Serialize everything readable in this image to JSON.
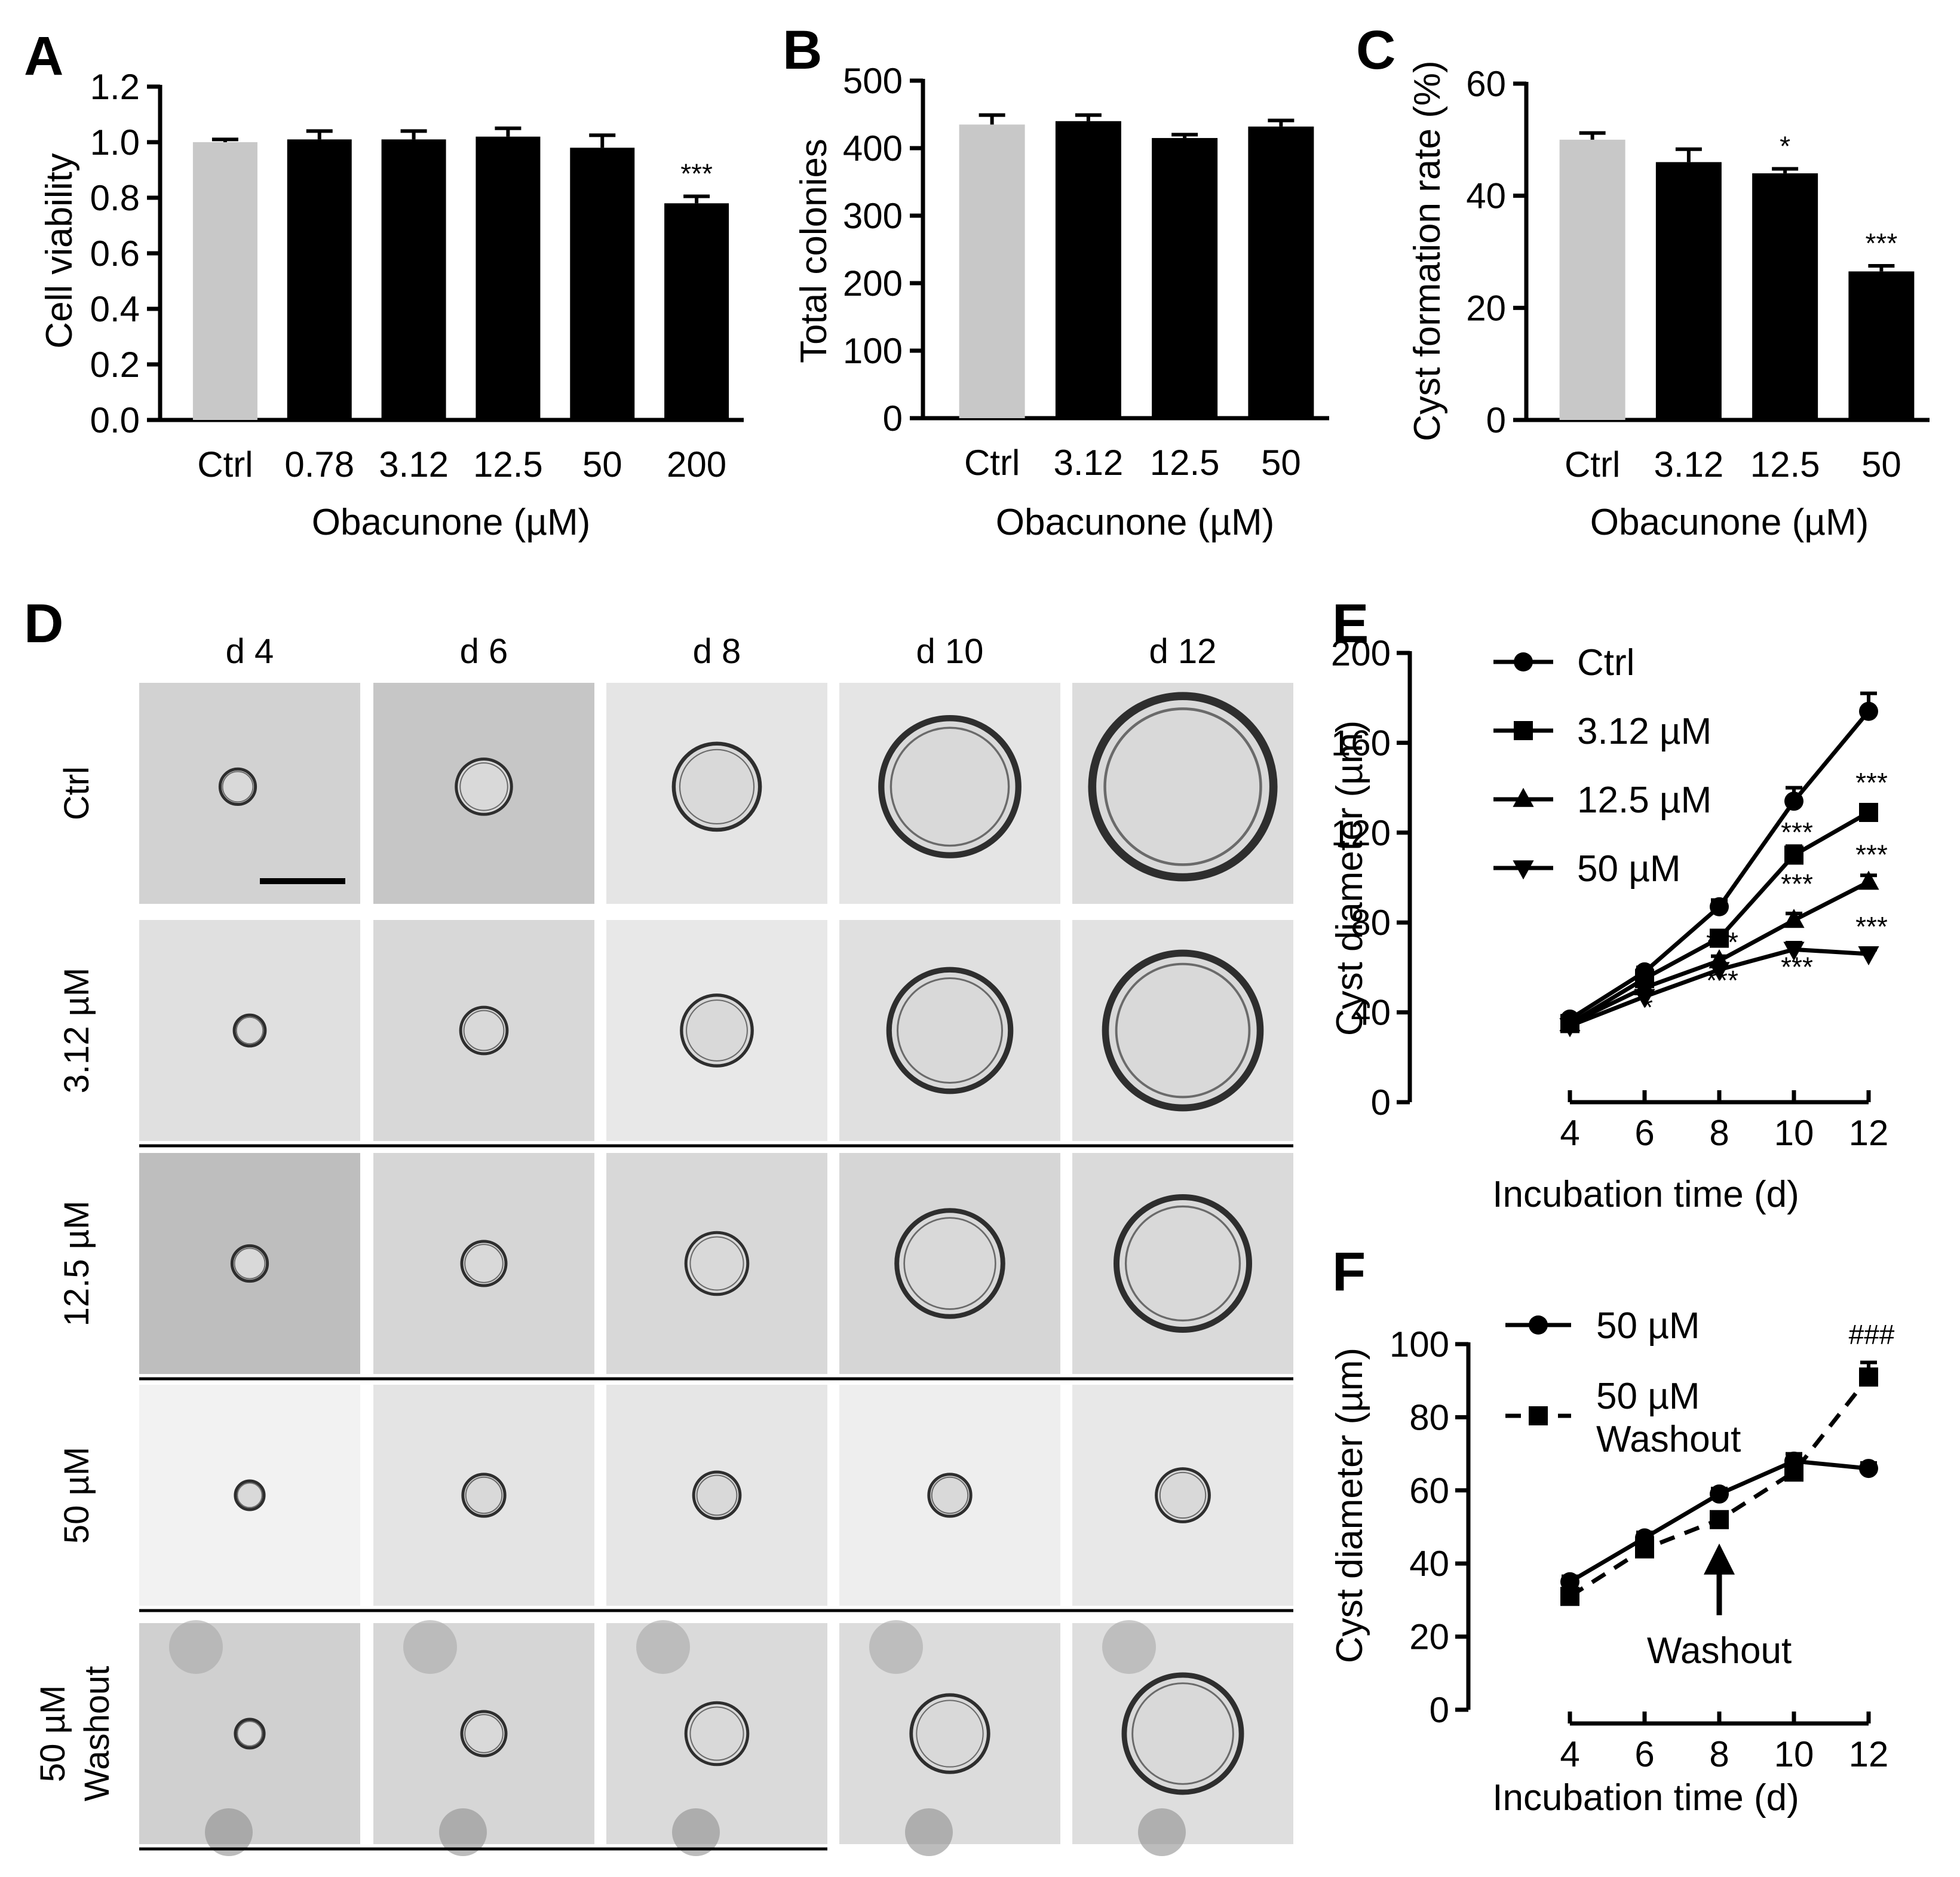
{
  "panels": {
    "A": {
      "letter": "A"
    },
    "B": {
      "letter": "B"
    },
    "C": {
      "letter": "C"
    },
    "D": {
      "letter": "D"
    },
    "E": {
      "letter": "E"
    },
    "F": {
      "letter": "F"
    }
  },
  "microscopy": {
    "days": [
      "d 4",
      "d 6",
      "d 8",
      "d  10",
      "d 12"
    ],
    "rows": [
      "Ctrl",
      "3.12 µM",
      "12.5 µM",
      "50 µM",
      "50 µM Washout"
    ],
    "row_label_lines": [
      [
        "Ctrl"
      ],
      [
        "3.12 µM"
      ],
      [
        "12.5 µM"
      ],
      [
        "50 µM"
      ],
      [
        "50 µM",
        "Washout"
      ]
    ],
    "cyst_relative_size": [
      [
        0.16,
        0.25,
        0.39,
        0.62,
        0.82
      ],
      [
        0.14,
        0.21,
        0.32,
        0.55,
        0.7
      ],
      [
        0.16,
        0.2,
        0.28,
        0.48,
        0.6
      ],
      [
        0.13,
        0.19,
        0.21,
        0.19,
        0.24
      ],
      [
        0.13,
        0.2,
        0.28,
        0.35,
        0.53
      ]
    ],
    "background_shades": [
      [
        "#d2d2d2",
        "#c6c6c6",
        "#e5e5e5",
        "#e5e5e5",
        "#dcdcdc"
      ],
      [
        "#e0e0e0",
        "#d8d8d8",
        "#e8e8e8",
        "#e0e0e0",
        "#e2e2e2"
      ],
      [
        "#bebebe",
        "#d6d6d6",
        "#d8d8d8",
        "#d6d6d6",
        "#dadada"
      ],
      [
        "#f2f2f2",
        "#e4e4e4",
        "#e6e6e6",
        "#eeeeee",
        "#e8e8e8"
      ],
      [
        "#d0d0d0",
        "#d6d6d6",
        "#dadada",
        "#dcdcdc",
        "#dedede"
      ]
    ]
  },
  "chart_data": [
    {
      "panel": "A",
      "type": "bar",
      "categories": [
        "Ctrl",
        "0.78",
        "3.12",
        "12.5",
        "50",
        "200"
      ],
      "values": [
        1.0,
        1.01,
        1.01,
        1.02,
        0.98,
        0.78
      ],
      "errors": [
        0.01,
        0.03,
        0.03,
        0.03,
        0.045,
        0.025
      ],
      "colors": [
        "#c8c8c8",
        "#000000",
        "#000000",
        "#000000",
        "#000000",
        "#000000"
      ],
      "significance": [
        "",
        "",
        "",
        "",
        "",
        "***"
      ],
      "xlabel": "Obacunone (µM)",
      "ylabel": "Cell viability",
      "ylim": [
        0,
        1.2
      ],
      "yticks": [
        0.0,
        0.2,
        0.4,
        0.6,
        0.8,
        1.0,
        1.2
      ],
      "ytick_labels": [
        "0.0",
        "0.2",
        "0.4",
        "0.6",
        "0.8",
        "1.0",
        "1.2"
      ]
    },
    {
      "panel": "B",
      "type": "bar",
      "categories": [
        "Ctrl",
        "3.12",
        "12.5",
        "50"
      ],
      "values": [
        435,
        440,
        415,
        432
      ],
      "errors": [
        14,
        9,
        5,
        9
      ],
      "colors": [
        "#c8c8c8",
        "#000000",
        "#000000",
        "#000000"
      ],
      "significance": [
        "",
        "",
        "",
        ""
      ],
      "xlabel": "Obacunone (µM)",
      "ylabel": "Total colonies",
      "ylim": [
        0,
        500
      ],
      "yticks": [
        0,
        100,
        200,
        300,
        400,
        500
      ],
      "ytick_labels": [
        "0",
        "100",
        "200",
        "300",
        "400",
        "500"
      ]
    },
    {
      "panel": "C",
      "type": "bar",
      "categories": [
        "Ctrl",
        "3.12",
        "12.5",
        "50"
      ],
      "values": [
        50,
        46,
        44,
        26.5
      ],
      "errors": [
        1.2,
        2.3,
        0.8,
        1.0
      ],
      "colors": [
        "#c8c8c8",
        "#000000",
        "#000000",
        "#000000"
      ],
      "significance": [
        "",
        "",
        "*",
        "***"
      ],
      "xlabel": "Obacunone (µM)",
      "ylabel": "Cyst formation rate (%)",
      "ylim": [
        0,
        60
      ],
      "yticks": [
        0,
        20,
        40,
        60
      ],
      "ytick_labels": [
        "0",
        "20",
        "40",
        "60"
      ]
    },
    {
      "panel": "E",
      "type": "line",
      "x": [
        4,
        6,
        8,
        10,
        12
      ],
      "series": [
        {
          "name": "Ctrl",
          "marker": "circle",
          "values": [
            37,
            58,
            87,
            134,
            174
          ],
          "errors": [
            1.5,
            2,
            3,
            6,
            8
          ]
        },
        {
          "name": "3.12 µM",
          "marker": "square",
          "values": [
            35,
            55,
            73,
            110,
            129
          ],
          "errors": [
            1.5,
            2,
            3,
            4,
            3
          ]
        },
        {
          "name": "12.5 µM",
          "marker": "triangle-up",
          "values": [
            35,
            51,
            63,
            81,
            98
          ],
          "errors": [
            1.5,
            2,
            2,
            3,
            3
          ]
        },
        {
          "name": "50 µM",
          "marker": "triangle-down",
          "values": [
            34,
            47,
            59,
            68,
            66
          ],
          "errors": [
            1.5,
            2,
            2,
            3,
            2
          ]
        }
      ],
      "annotations": [
        {
          "x": 6,
          "y": 38,
          "text": "*"
        },
        {
          "x": 8,
          "y": 67,
          "text": "***"
        },
        {
          "x": 8,
          "y": 50,
          "text": "***"
        },
        {
          "x": 10,
          "y": 116,
          "text": "***"
        },
        {
          "x": 10,
          "y": 93,
          "text": "***"
        },
        {
          "x": 10,
          "y": 56,
          "text": "***"
        },
        {
          "x": 12,
          "y": 138,
          "text": "***"
        },
        {
          "x": 12,
          "y": 106,
          "text": "***"
        },
        {
          "x": 12,
          "y": 74,
          "text": "***"
        }
      ],
      "xlabel": "Incubation time (d)",
      "ylabel": "Cyst diameter (µm)",
      "xlim": [
        4,
        12
      ],
      "ylim": [
        0,
        200
      ],
      "xticks": [
        4,
        6,
        8,
        10,
        12
      ],
      "yticks": [
        0,
        40,
        80,
        120,
        160,
        200
      ],
      "legend": "top-left"
    },
    {
      "panel": "F",
      "type": "line",
      "x": [
        4,
        6,
        8,
        10,
        12
      ],
      "series": [
        {
          "name": "50 µM",
          "marker": "circle",
          "dashed": false,
          "values": [
            35,
            47,
            59,
            68,
            66
          ],
          "errors": [
            1.5,
            1.5,
            1.5,
            2,
            1.5
          ]
        },
        {
          "name": "50 µM Washout",
          "marker": "square",
          "dashed": true,
          "values": [
            31,
            44,
            52,
            65,
            91
          ],
          "errors": [
            1.5,
            1.5,
            2,
            2,
            4
          ]
        }
      ],
      "legend_label_lines": [
        [
          "50 µM"
        ],
        [
          "50 µM",
          "Washout"
        ]
      ],
      "annotations": [
        {
          "x": 12,
          "y": 100,
          "text": "###"
        }
      ],
      "washout_label": "Washout",
      "washout_day": 8,
      "xlabel": "Incubation time (d)",
      "ylabel": "Cyst diameter (µm)",
      "xlim": [
        4,
        12
      ],
      "ylim": [
        0,
        100
      ],
      "xticks": [
        4,
        6,
        8,
        10,
        12
      ],
      "yticks": [
        0,
        20,
        40,
        60,
        80,
        100
      ],
      "legend": "top-left"
    }
  ]
}
